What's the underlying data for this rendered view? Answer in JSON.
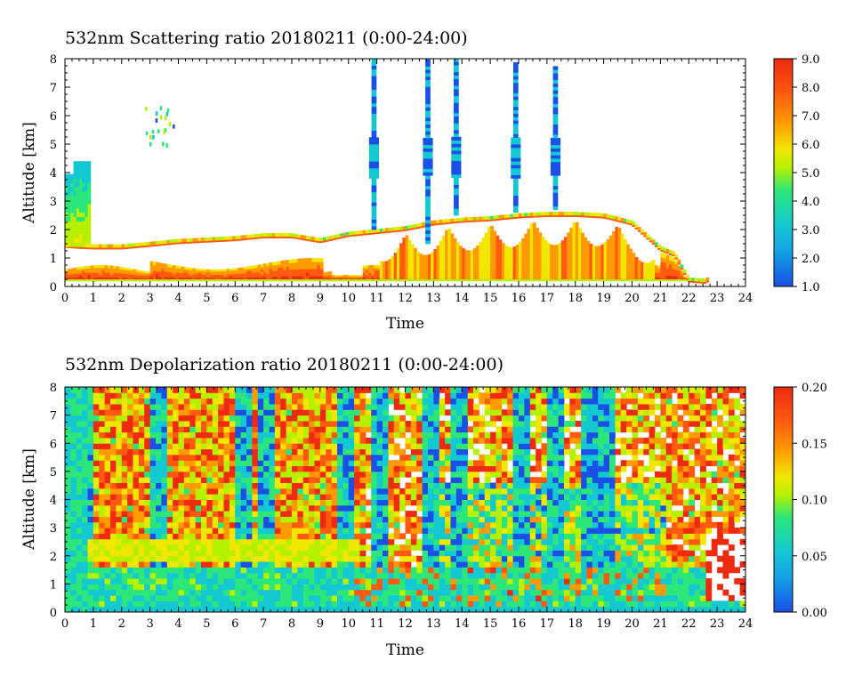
{
  "chart_data": [
    {
      "type": "heatmap",
      "title": "532nm Scattering ratio  20180211 (0:00-24:00)",
      "xlabel": "Time",
      "ylabel": "Altitude [km]",
      "xlim": [
        0,
        24
      ],
      "ylim": [
        0,
        8
      ],
      "x_ticks": [
        "0",
        "1",
        "2",
        "3",
        "4",
        "5",
        "6",
        "7",
        "8",
        "9",
        "10",
        "11",
        "12",
        "13",
        "14",
        "15",
        "16",
        "17",
        "18",
        "19",
        "20",
        "21",
        "22",
        "23",
        "24"
      ],
      "y_ticks": [
        "0",
        "1",
        "2",
        "3",
        "4",
        "5",
        "6",
        "7",
        "8"
      ],
      "colorbar": {
        "range": [
          1.0,
          9.0
        ],
        "ticks": [
          "1.0",
          "2.0",
          "3.0",
          "4.0",
          "5.0",
          "6.0",
          "7.0",
          "8.0",
          "9.0"
        ],
        "colors": [
          "#1a50e6",
          "#14c8d2",
          "#2ce67a",
          "#b4f000",
          "#f0e600",
          "#ff9a00",
          "#ff5a10",
          "#ee2a10"
        ]
      },
      "cloud_base_km": [
        [
          0,
          1.42
        ],
        [
          0.5,
          1.38
        ],
        [
          1,
          1.36
        ],
        [
          2,
          1.36
        ],
        [
          3,
          1.45
        ],
        [
          4,
          1.55
        ],
        [
          5,
          1.6
        ],
        [
          6,
          1.65
        ],
        [
          7,
          1.75
        ],
        [
          8,
          1.75
        ],
        [
          9,
          1.58
        ],
        [
          10,
          1.8
        ],
        [
          11,
          1.9
        ],
        [
          12,
          2.0
        ],
        [
          13,
          2.2
        ],
        [
          14,
          2.3
        ],
        [
          15,
          2.35
        ],
        [
          16,
          2.45
        ],
        [
          17,
          2.5
        ],
        [
          18,
          2.5
        ],
        [
          19,
          2.45
        ],
        [
          20,
          2.2
        ],
        [
          21,
          1.3
        ],
        [
          21.5,
          1.1
        ],
        [
          22,
          0.2
        ],
        [
          22.6,
          0.15
        ]
      ],
      "cirrus_columns": [
        {
          "time": 10.9,
          "base_km": 2.0,
          "top_km": 8.0
        },
        {
          "time": 12.8,
          "base_km": 1.5,
          "top_km": 8.0
        },
        {
          "time": 13.8,
          "base_km": 2.5,
          "top_km": 8.0
        },
        {
          "time": 15.9,
          "base_km": 2.6,
          "top_km": 7.8
        },
        {
          "time": 17.3,
          "base_km": 2.7,
          "top_km": 7.7
        }
      ]
    },
    {
      "type": "heatmap",
      "title": "532nm Depolarization ratio  20180211 (0:00-24:00)",
      "xlabel": "Time",
      "ylabel": "Altitude [km]",
      "xlim": [
        0,
        24
      ],
      "ylim": [
        0,
        8
      ],
      "x_ticks": [
        "0",
        "1",
        "2",
        "3",
        "4",
        "5",
        "6",
        "7",
        "8",
        "9",
        "10",
        "11",
        "12",
        "13",
        "14",
        "15",
        "16",
        "17",
        "18",
        "19",
        "20",
        "21",
        "22",
        "23",
        "24"
      ],
      "y_ticks": [
        "0",
        "1",
        "2",
        "3",
        "4",
        "5",
        "6",
        "7",
        "8"
      ],
      "colorbar": {
        "range": [
          0.0,
          0.2
        ],
        "ticks": [
          "0.00",
          "0.05",
          "0.10",
          "0.15",
          "0.20"
        ],
        "colors": [
          "#1a50e6",
          "#14c8d2",
          "#2ce67a",
          "#b4f000",
          "#f0e600",
          "#ff9a00",
          "#ff5a10",
          "#ee2a10"
        ]
      },
      "green_layer_km": [
        1.6,
        2.6
      ],
      "green_layer_end_time": 10.3,
      "low_depol_columns": [
        0.6,
        3.2,
        6.3,
        7.0,
        9.8,
        10.9,
        12.8,
        13.8,
        15.9,
        17.2,
        18.3,
        19.0
      ]
    }
  ]
}
